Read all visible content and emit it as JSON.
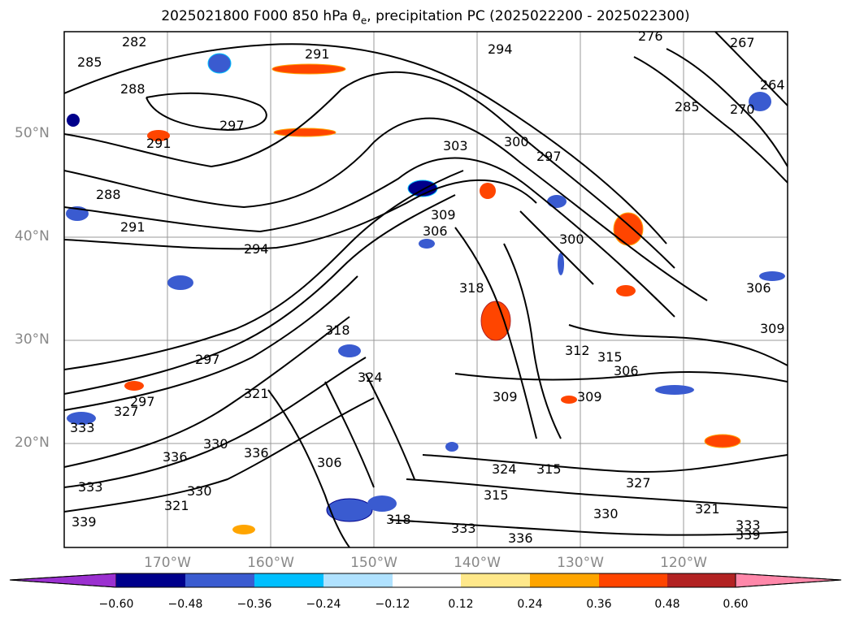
{
  "title": "2025021800 F000 850 hPa θe, precipitation PC (2025022200 - 2025022300)",
  "title_parts": {
    "prefix": "2025021800 F000 850 hPa θ",
    "sub": "e",
    "suffix": ", precipitation PC (2025022200 - 2025022300)"
  },
  "lat_labels": [
    "50°N",
    "40°N",
    "30°N",
    "20°N"
  ],
  "lon_labels": [
    "170°W",
    "160°W",
    "150°W",
    "140°W",
    "130°W",
    "120°W"
  ],
  "colorbar": {
    "ticks": [
      "−0.60",
      "−0.48",
      "−0.36",
      "−0.24",
      "−0.12",
      "0.12",
      "0.24",
      "0.36",
      "0.48",
      "0.60"
    ],
    "colors": [
      "#9b30d0",
      "#00008b",
      "#3a5bd0",
      "#00bfff",
      "#b0e2ff",
      "#ffffff",
      "#ffe88a",
      "#ffa500",
      "#ff4500",
      "#b22222",
      "#ff88aa"
    ]
  },
  "contour_labels": [
    "285",
    "282",
    "288",
    "291",
    "297",
    "294",
    "291",
    "288",
    "291",
    "297",
    "303",
    "300",
    "297",
    "306",
    "309",
    "300",
    "318",
    "318",
    "321",
    "324",
    "297",
    "327",
    "330",
    "333",
    "336",
    "339",
    "333",
    "330",
    "321",
    "336",
    "318",
    "315",
    "333",
    "306",
    "309",
    "312",
    "315",
    "306",
    "309",
    "324",
    "315",
    "321",
    "327",
    "330",
    "333",
    "336",
    "339",
    "294",
    "276",
    "267",
    "264",
    "285",
    "270",
    "306",
    "309"
  ]
}
